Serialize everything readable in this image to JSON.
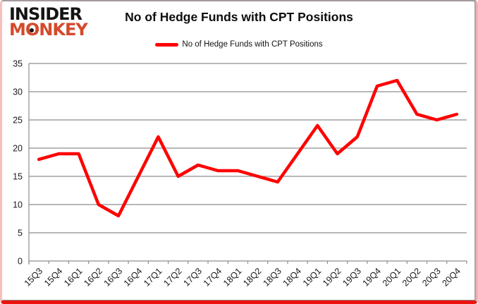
{
  "brand": {
    "line1": "INSIDER",
    "line2": "MONKEY"
  },
  "header": {
    "title": "No of Hedge Funds with CPT Positions"
  },
  "legend": {
    "label": "No of Hedge Funds with CPT Positions"
  },
  "chart_data": {
    "type": "line",
    "title": "No of Hedge Funds with CPT Positions",
    "categories": [
      "15Q3",
      "15Q4",
      "16Q1",
      "16Q2",
      "16Q3",
      "16Q4",
      "17Q1",
      "17Q2",
      "17Q3",
      "17Q4",
      "18Q1",
      "18Q2",
      "18Q3",
      "18Q4",
      "19Q1",
      "19Q2",
      "19Q3",
      "19Q4",
      "20Q1",
      "20Q2",
      "20Q3",
      "20Q4"
    ],
    "series": [
      {
        "name": "No of Hedge Funds with CPT Positions",
        "color": "#ff0000",
        "values": [
          18,
          19,
          19,
          10,
          8,
          15,
          22,
          15,
          17,
          16,
          16,
          15,
          14,
          19,
          24,
          19,
          22,
          31,
          32,
          26,
          25,
          26
        ]
      }
    ],
    "xlabel": "",
    "ylabel": "",
    "ylim": [
      0,
      35
    ],
    "yticks": [
      0,
      5,
      10,
      15,
      20,
      25,
      30,
      35
    ],
    "grid": true,
    "legend_position": "top-center"
  },
  "colors": {
    "line_red": "#ff0000",
    "logo_red": "#d34a2c",
    "logo_black": "#141414",
    "grid_gray": "#8e8e8e",
    "tick_text": "#1a1a1a",
    "frame_red": "#ec1410"
  }
}
